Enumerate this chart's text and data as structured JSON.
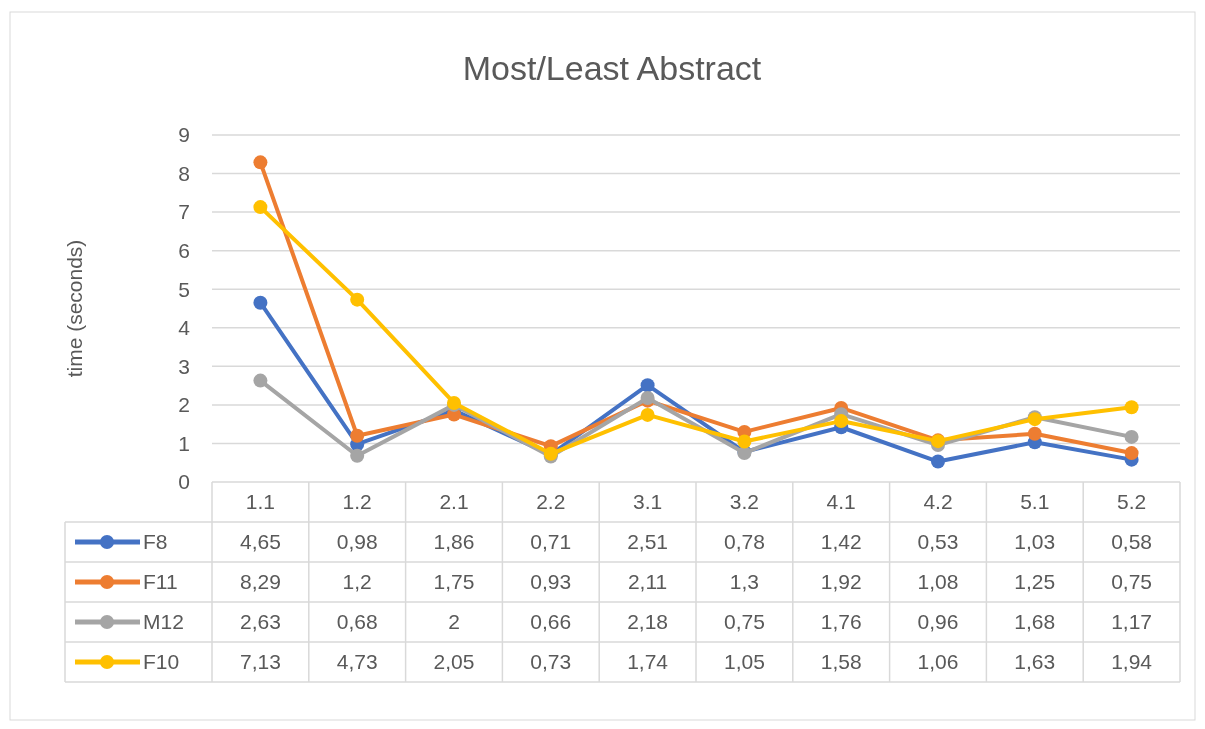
{
  "chart_data": {
    "type": "line",
    "title": "Most/Least Abstract",
    "ylabel": "time (seconds)",
    "categories": [
      "1.1",
      "1.2",
      "2.1",
      "2.2",
      "3.1",
      "3.2",
      "4.1",
      "4.2",
      "5.1",
      "5.2"
    ],
    "ylim": [
      0,
      9
    ],
    "yticks": [
      0,
      1,
      2,
      3,
      4,
      5,
      6,
      7,
      8,
      9
    ],
    "grid": "y",
    "legend": "bottom",
    "marker": "circle",
    "line_style": "solid",
    "series": [
      {
        "name": "F8",
        "color": "#4472c4",
        "values": [
          4.65,
          0.98,
          1.86,
          0.71,
          2.51,
          0.78,
          1.42,
          0.53,
          1.03,
          0.58
        ],
        "value_labels": [
          "4,65",
          "0,98",
          "1,86",
          "0,71",
          "2,51",
          "0,78",
          "1,42",
          "0,53",
          "1,03",
          "0,58"
        ]
      },
      {
        "name": "F11",
        "color": "#ed7d31",
        "values": [
          8.29,
          1.2,
          1.75,
          0.93,
          2.11,
          1.3,
          1.92,
          1.08,
          1.25,
          0.75
        ],
        "value_labels": [
          "8,29",
          "1,2",
          "1,75",
          "0,93",
          "2,11",
          "1,3",
          "1,92",
          "1,08",
          "1,25",
          "0,75"
        ]
      },
      {
        "name": "M12",
        "color": "#a5a5a5",
        "values": [
          2.63,
          0.68,
          2,
          0.66,
          2.18,
          0.75,
          1.76,
          0.96,
          1.68,
          1.17
        ],
        "value_labels": [
          "2,63",
          "0,68",
          "2",
          "0,66",
          "2,18",
          "0,75",
          "1,76",
          "0,96",
          "1,68",
          "1,17"
        ]
      },
      {
        "name": "F10",
        "color": "#ffc000",
        "values": [
          7.13,
          4.73,
          2.05,
          0.73,
          1.74,
          1.05,
          1.58,
          1.06,
          1.63,
          1.94
        ],
        "value_labels": [
          "7,13",
          "4,73",
          "2,05",
          "0,73",
          "1,74",
          "1,05",
          "1,58",
          "1,06",
          "1,63",
          "1,94"
        ]
      }
    ]
  }
}
